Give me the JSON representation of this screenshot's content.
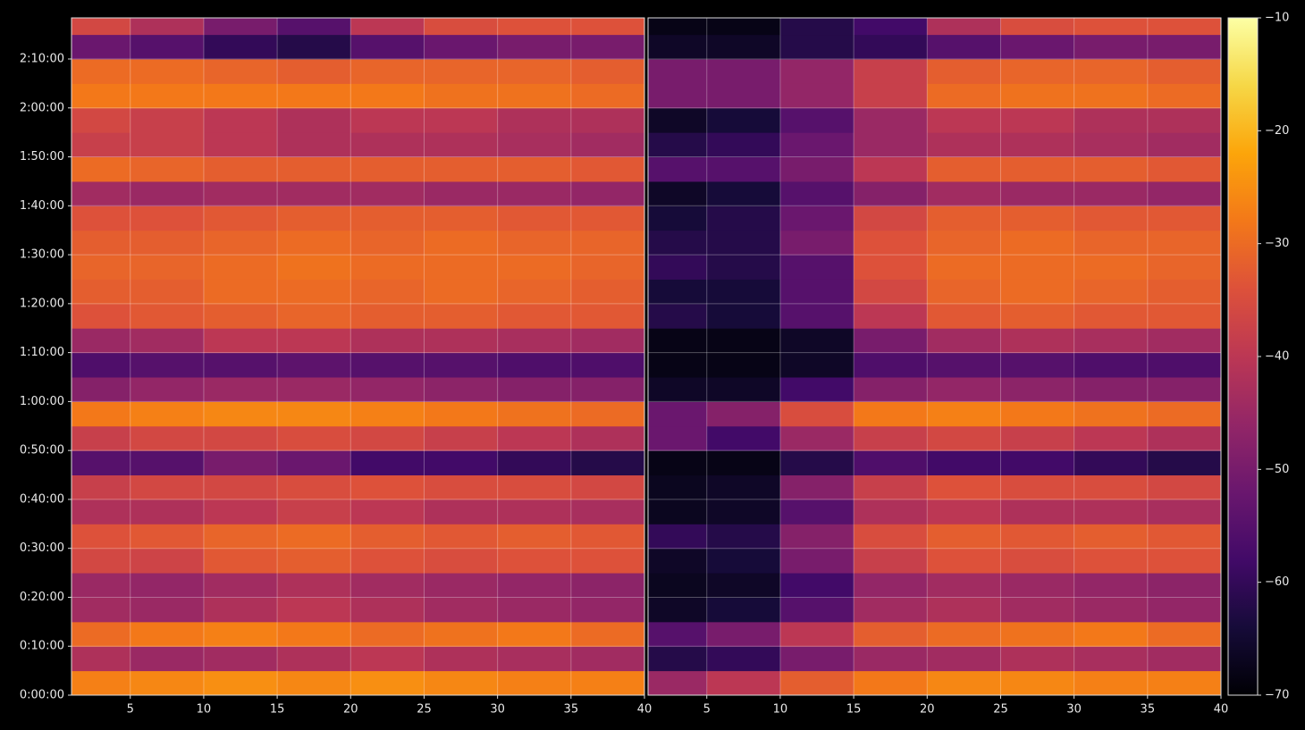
{
  "chart_data": [
    {
      "type": "heatmap",
      "colormap": "inferno",
      "clim": [
        -70,
        -10
      ],
      "xlim": [
        1,
        40
      ],
      "xticks": [
        5,
        10,
        15,
        20,
        25,
        30,
        35,
        40
      ],
      "ylim": [
        0,
        8304
      ],
      "yticks": [
        {
          "value": 0,
          "label": "0:00:00"
        },
        {
          "value": 600,
          "label": "0:10:00"
        },
        {
          "value": 1200,
          "label": "0:20:00"
        },
        {
          "value": 1800,
          "label": "0:30:00"
        },
        {
          "value": 2400,
          "label": "0:40:00"
        },
        {
          "value": 3000,
          "label": "0:50:00"
        },
        {
          "value": 3600,
          "label": "1:00:00"
        },
        {
          "value": 4200,
          "label": "1:10:00"
        },
        {
          "value": 4800,
          "label": "1:20:00"
        },
        {
          "value": 5400,
          "label": "1:30:00"
        },
        {
          "value": 6000,
          "label": "1:40:00"
        },
        {
          "value": 6600,
          "label": "1:50:00"
        },
        {
          "value": 7200,
          "label": "2:00:00"
        },
        {
          "value": 7800,
          "label": "2:10:00"
        }
      ],
      "grid": true,
      "x_bins": [
        1,
        5,
        10,
        15,
        20,
        25,
        30,
        35,
        40
      ],
      "y_bins": [
        0,
        300,
        600,
        900,
        1200,
        1500,
        1800,
        2100,
        2400,
        2700,
        3000,
        3300,
        3600,
        3900,
        4200,
        4500,
        4800,
        5100,
        5400,
        5700,
        6000,
        6300,
        6600,
        6900,
        7200,
        7500,
        7800,
        8100,
        8304
      ],
      "values": [
        [
          -27,
          -26,
          -25,
          -26,
          -25,
          -26,
          -27,
          -27
        ],
        [
          -42,
          -45,
          -44,
          -42,
          -40,
          -42,
          -43,
          -44
        ],
        [
          -30,
          -28,
          -27,
          -28,
          -30,
          -29,
          -28,
          -30
        ],
        [
          -44,
          -45,
          -42,
          -40,
          -42,
          -44,
          -45,
          -46
        ],
        [
          -45,
          -46,
          -44,
          -42,
          -44,
          -45,
          -46,
          -47
        ],
        [
          -36,
          -37,
          -33,
          -32,
          -34,
          -35,
          -34,
          -34
        ],
        [
          -34,
          -33,
          -31,
          -30,
          -32,
          -33,
          -32,
          -33
        ],
        [
          -42,
          -42,
          -40,
          -38,
          -40,
          -42,
          -42,
          -43
        ],
        [
          -38,
          -36,
          -36,
          -35,
          -34,
          -35,
          -35,
          -36
        ],
        [
          -55,
          -55,
          -50,
          -52,
          -58,
          -58,
          -60,
          -62
        ],
        [
          -38,
          -36,
          -36,
          -35,
          -36,
          -38,
          -40,
          -42
        ],
        [
          -28,
          -27,
          -26,
          -26,
          -27,
          -28,
          -29,
          -30
        ],
        [
          -48,
          -46,
          -45,
          -45,
          -46,
          -47,
          -48,
          -48
        ],
        [
          -56,
          -55,
          -55,
          -54,
          -55,
          -55,
          -56,
          -56
        ],
        [
          -45,
          -44,
          -40,
          -40,
          -42,
          -42,
          -43,
          -44
        ],
        [
          -34,
          -33,
          -32,
          -31,
          -32,
          -32,
          -33,
          -33
        ],
        [
          -32,
          -32,
          -30,
          -30,
          -31,
          -30,
          -31,
          -32
        ],
        [
          -31,
          -31,
          -30,
          -29,
          -30,
          -30,
          -30,
          -31
        ],
        [
          -32,
          -32,
          -31,
          -30,
          -31,
          -30,
          -31,
          -31
        ],
        [
          -34,
          -34,
          -33,
          -32,
          -32,
          -32,
          -33,
          -33
        ],
        [
          -44,
          -45,
          -44,
          -44,
          -44,
          -45,
          -45,
          -46
        ],
        [
          -30,
          -31,
          -32,
          -32,
          -32,
          -32,
          -32,
          -33
        ],
        [
          -38,
          -38,
          -40,
          -42,
          -42,
          -42,
          -43,
          -44
        ],
        [
          -36,
          -38,
          -40,
          -42,
          -40,
          -40,
          -42,
          -42
        ],
        [
          -28,
          -28,
          -28,
          -28,
          -28,
          -29,
          -29,
          -30
        ],
        [
          -30,
          -30,
          -31,
          -32,
          -31,
          -31,
          -31,
          -32
        ],
        [
          -52,
          -55,
          -60,
          -62,
          -55,
          -52,
          -50,
          -50
        ],
        [
          -36,
          -42,
          -50,
          -55,
          -40,
          -35,
          -34,
          -34
        ]
      ]
    },
    {
      "type": "heatmap",
      "colormap": "inferno",
      "clim": [
        -70,
        -10
      ],
      "xlim": [
        1,
        40
      ],
      "xticks": [
        5,
        10,
        15,
        20,
        25,
        30,
        35,
        40
      ],
      "ylim": [
        0,
        8304
      ],
      "grid": true,
      "x_bins": [
        1,
        5,
        10,
        15,
        20,
        25,
        30,
        35,
        40
      ],
      "y_bins": [
        0,
        300,
        600,
        900,
        1200,
        1500,
        1800,
        2100,
        2400,
        2700,
        3000,
        3300,
        3600,
        3900,
        4200,
        4500,
        4800,
        5100,
        5400,
        5700,
        6000,
        6300,
        6600,
        6900,
        7200,
        7500,
        7800,
        8100,
        8304
      ],
      "values": [
        [
          -45,
          -40,
          -32,
          -28,
          -26,
          -26,
          -27,
          -27
        ],
        [
          -62,
          -60,
          -50,
          -45,
          -44,
          -42,
          -43,
          -44
        ],
        [
          -55,
          -50,
          -40,
          -32,
          -30,
          -29,
          -28,
          -30
        ],
        [
          -66,
          -64,
          -55,
          -44,
          -42,
          -44,
          -45,
          -46
        ],
        [
          -67,
          -66,
          -58,
          -46,
          -44,
          -45,
          -46,
          -47
        ],
        [
          -66,
          -64,
          -50,
          -38,
          -34,
          -35,
          -34,
          -34
        ],
        [
          -60,
          -62,
          -48,
          -35,
          -32,
          -33,
          -32,
          -33
        ],
        [
          -67,
          -66,
          -55,
          -42,
          -40,
          -42,
          -42,
          -43
        ],
        [
          -67,
          -66,
          -48,
          -38,
          -34,
          -35,
          -35,
          -36
        ],
        [
          -68,
          -68,
          -62,
          -56,
          -58,
          -58,
          -60,
          -62
        ],
        [
          -52,
          -58,
          -45,
          -38,
          -36,
          -38,
          -40,
          -42
        ],
        [
          -52,
          -48,
          -35,
          -28,
          -27,
          -28,
          -29,
          -30
        ],
        [
          -66,
          -66,
          -58,
          -48,
          -46,
          -47,
          -48,
          -48
        ],
        [
          -68,
          -68,
          -66,
          -56,
          -55,
          -55,
          -56,
          -56
        ],
        [
          -68,
          -68,
          -66,
          -50,
          -44,
          -42,
          -43,
          -44
        ],
        [
          -62,
          -64,
          -55,
          -40,
          -33,
          -32,
          -33,
          -33
        ],
        [
          -64,
          -64,
          -55,
          -36,
          -31,
          -30,
          -31,
          -32
        ],
        [
          -60,
          -62,
          -55,
          -34,
          -30,
          -30,
          -30,
          -31
        ],
        [
          -62,
          -62,
          -50,
          -34,
          -31,
          -30,
          -31,
          -31
        ],
        [
          -64,
          -62,
          -52,
          -36,
          -32,
          -32,
          -33,
          -33
        ],
        [
          -66,
          -64,
          -55,
          -48,
          -44,
          -45,
          -45,
          -46
        ],
        [
          -55,
          -55,
          -50,
          -40,
          -32,
          -32,
          -32,
          -33
        ],
        [
          -62,
          -60,
          -52,
          -45,
          -42,
          -42,
          -43,
          -44
        ],
        [
          -66,
          -64,
          -55,
          -45,
          -40,
          -40,
          -42,
          -42
        ],
        [
          -50,
          -50,
          -46,
          -38,
          -30,
          -29,
          -29,
          -30
        ],
        [
          -50,
          -50,
          -46,
          -38,
          -32,
          -31,
          -31,
          -32
        ],
        [
          -66,
          -66,
          -62,
          -60,
          -55,
          -52,
          -50,
          -50
        ],
        [
          -68,
          -68,
          -62,
          -58,
          -42,
          -35,
          -34,
          -34
        ]
      ]
    },
    {
      "type": "colorbar",
      "colormap": "inferno",
      "lim": [
        -70,
        -10
      ],
      "ticks": [
        {
          "value": -70,
          "label": "−70"
        },
        {
          "value": -60,
          "label": "−60"
        },
        {
          "value": -50,
          "label": "−50"
        },
        {
          "value": -40,
          "label": "−40"
        },
        {
          "value": -30,
          "label": "−30"
        },
        {
          "value": -20,
          "label": "−20"
        },
        {
          "value": -10,
          "label": "−10"
        }
      ]
    }
  ]
}
